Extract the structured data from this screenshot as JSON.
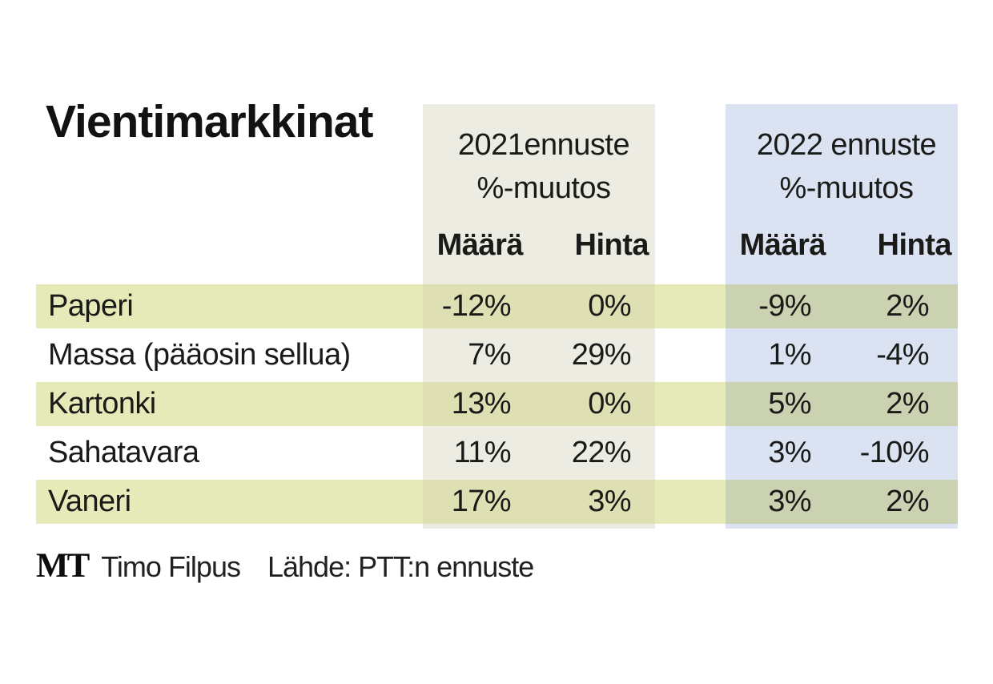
{
  "title": "Vientimarkkinat",
  "groups": [
    {
      "year": "2021ennuste",
      "unit": "%-muutos",
      "col1": "Määrä",
      "col2": "Hinta"
    },
    {
      "year": "2022 ennuste",
      "unit": "%-muutos",
      "col1": "Määrä",
      "col2": "Hinta"
    }
  ],
  "rows": [
    {
      "label": "Paperi",
      "v": [
        "-12%",
        "0%",
        "-9%",
        "2%"
      ]
    },
    {
      "label": "Massa (pääosin sellua)",
      "v": [
        "7%",
        "29%",
        "1%",
        "-4%"
      ]
    },
    {
      "label": "Kartonki",
      "v": [
        "13%",
        "0%",
        "5%",
        "2%"
      ]
    },
    {
      "label": "Sahatavara",
      "v": [
        "11%",
        "22%",
        "3%",
        "-10%"
      ]
    },
    {
      "label": "Vaneri",
      "v": [
        "17%",
        "3%",
        "3%",
        "2%"
      ]
    }
  ],
  "footer": {
    "logo": "MT",
    "author": "Timo Filpus",
    "source": "Lähde: PTT:n ennuste"
  },
  "colors": {
    "stripe_pale": "#e6e9b8",
    "block_2021": "#ecece3",
    "stripe_on_2021": "#dedfb3",
    "block_2022": "#dbe3f2",
    "stripe_on_2022": "#cbd2b1",
    "text": "#1a1a18"
  },
  "chart_data": {
    "type": "table",
    "title": "Vientimarkkinat",
    "column_groups": [
      "2021ennuste %-muutos",
      "2022 ennuste %-muutos"
    ],
    "columns": [
      "2021 Määrä",
      "2021 Hinta",
      "2022 Määrä",
      "2022 Hinta"
    ],
    "rows": [
      {
        "category": "Paperi",
        "values_pct": [
          -12,
          0,
          -9,
          2
        ]
      },
      {
        "category": "Massa (pääosin sellua)",
        "values_pct": [
          7,
          29,
          1,
          -4
        ]
      },
      {
        "category": "Kartonki",
        "values_pct": [
          13,
          0,
          5,
          2
        ]
      },
      {
        "category": "Sahatavara",
        "values_pct": [
          11,
          22,
          3,
          -10
        ]
      },
      {
        "category": "Vaneri",
        "values_pct": [
          17,
          3,
          3,
          2
        ]
      }
    ],
    "source": "Lähde: PTT:n ennuste"
  }
}
